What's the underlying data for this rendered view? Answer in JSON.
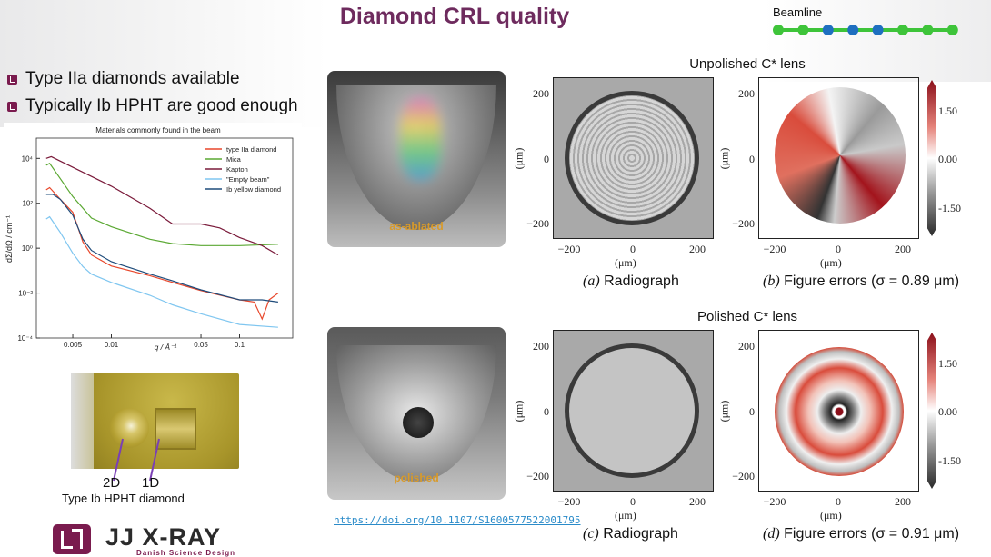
{
  "slide": {
    "title": "Diamond CRL quality",
    "beamline": {
      "label": "Beamline",
      "dots": [
        "green",
        "green",
        "blue",
        "blue",
        "blue",
        "green",
        "green",
        "green"
      ],
      "colors": {
        "green": "#3ec43a",
        "blue": "#1f6fc0",
        "line": "#3ec43a"
      }
    },
    "bullets": [
      "Type IIa diamonds available",
      "Typically Ib HPHT are good enough"
    ],
    "accent": "#6e2b5e"
  },
  "chart_data": {
    "type": "line",
    "title": "Materials commonly found in the beam",
    "xlabel": "q / Å⁻¹",
    "ylabel": "dΣ/dΩ / cm⁻¹",
    "xscale": "log",
    "yscale": "log",
    "xlim": [
      0.0026,
      0.26
    ],
    "ylim": [
      0.0001,
      80000
    ],
    "xticks": [
      0.005,
      0.01,
      0.05,
      0.1
    ],
    "xtick_labels": [
      "0.005",
      "0.01",
      "0.05",
      "0.1"
    ],
    "yticks": [
      0.0001,
      0.01,
      1,
      100,
      10000
    ],
    "ytick_labels": [
      "10⁻⁴",
      "10⁻²",
      "10⁰",
      "10²",
      "10⁴"
    ],
    "legend": "top-right",
    "grid": false,
    "series": [
      {
        "name": "type IIa diamond",
        "color": "#e8472b",
        "x": [
          0.0031,
          0.0033,
          0.004,
          0.005,
          0.006,
          0.007,
          0.01,
          0.02,
          0.03,
          0.05,
          0.1,
          0.13,
          0.15,
          0.17,
          0.2
        ],
        "y": [
          400,
          500,
          150,
          40,
          1.9,
          0.5,
          0.16,
          0.06,
          0.03,
          0.013,
          0.005,
          0.004,
          0.0007,
          0.005,
          0.01
        ]
      },
      {
        "name": "Mica",
        "color": "#5aa832",
        "x": [
          0.0031,
          0.0033,
          0.005,
          0.007,
          0.01,
          0.02,
          0.03,
          0.05,
          0.1,
          0.2
        ],
        "y": [
          5000,
          6000,
          200,
          22,
          9,
          2.5,
          1.6,
          1.3,
          1.3,
          1.5
        ]
      },
      {
        "name": "Kapton",
        "color": "#7a1a3a",
        "x": [
          0.0031,
          0.0034,
          0.005,
          0.01,
          0.02,
          0.03,
          0.05,
          0.07,
          0.1,
          0.15,
          0.2
        ],
        "y": [
          10000,
          12000,
          4000,
          580,
          60,
          12,
          12,
          8,
          3,
          1.3,
          0.5
        ]
      },
      {
        "name": "\"Empty beam\"",
        "color": "#7fc6f0",
        "x": [
          0.0031,
          0.0033,
          0.004,
          0.005,
          0.006,
          0.007,
          0.01,
          0.02,
          0.03,
          0.05,
          0.1,
          0.2
        ],
        "y": [
          20,
          25,
          5,
          0.6,
          0.15,
          0.07,
          0.03,
          0.008,
          0.003,
          0.0012,
          0.0004,
          0.0003
        ]
      },
      {
        "name": "Ib  yellow diamond",
        "color": "#1e4b7a",
        "x": [
          0.0031,
          0.0035,
          0.004,
          0.005,
          0.006,
          0.007,
          0.01,
          0.02,
          0.03,
          0.05,
          0.1,
          0.15,
          0.2
        ],
        "y": [
          250,
          250,
          150,
          30,
          2.5,
          0.8,
          0.25,
          0.07,
          0.035,
          0.014,
          0.005,
          0.005,
          0.004
        ]
      }
    ]
  },
  "sample_photo": {
    "labels": [
      "2D",
      "1D"
    ],
    "caption": "Type Ib HPHT diamond"
  },
  "logo": {
    "name": "JJ X-RAY",
    "tagline": "Danish Science Design"
  },
  "photos": {
    "top_label": "as-ablated",
    "bottom_label": "polished"
  },
  "reference_link": "https://doi.org/10.1107/S1600577522001795",
  "lenses": [
    {
      "title": "Unpolished C* lens",
      "radiograph": {
        "prefix": "(a)",
        "caption": "Radiograph"
      },
      "errors": {
        "prefix": "(b)",
        "caption": "Figure errors (σ = 0.89 μm)"
      }
    },
    {
      "title": "Polished C* lens",
      "radiograph": {
        "prefix": "(c)",
        "caption": "Radiograph"
      },
      "errors": {
        "prefix": "(d)",
        "caption": "Figure errors (σ = 0.91 μm)"
      }
    }
  ],
  "axes": {
    "ticks": [
      "200",
      "0",
      "−200"
    ],
    "xticks": [
      "−200",
      "0",
      "200"
    ],
    "unit": "(μm)"
  },
  "colorbar": {
    "ticks": [
      "1.50",
      "0.00",
      "-1.50"
    ],
    "colors": [
      "#2a2a2a",
      "#ffffff",
      "#8b0f1a"
    ]
  }
}
